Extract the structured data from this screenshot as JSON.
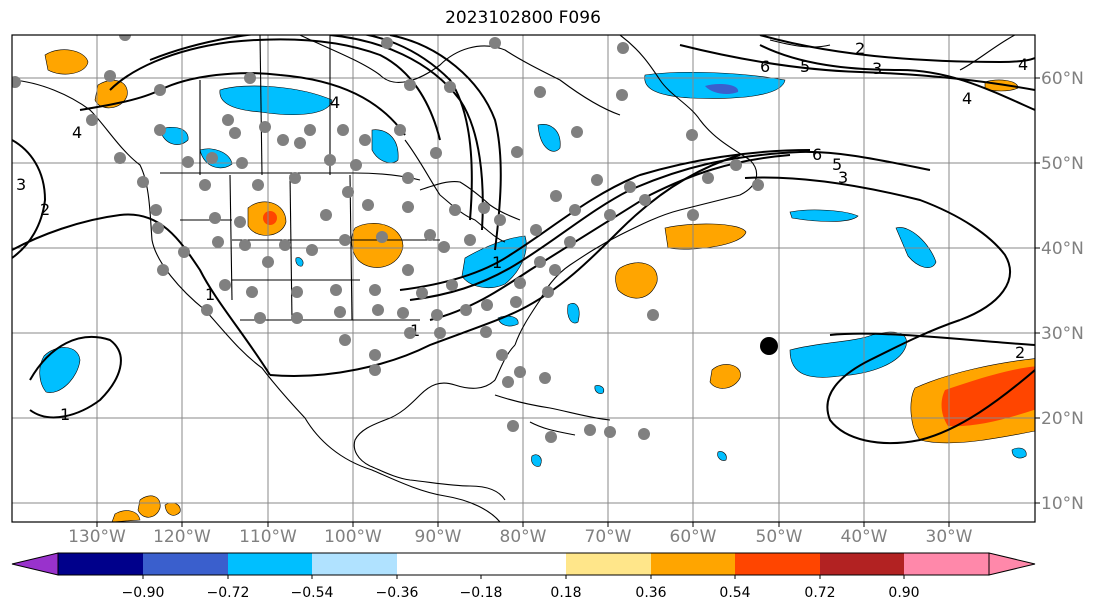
{
  "title": "2023102800 F096",
  "colors": {
    "land_line": "#000000",
    "grid": "#888888",
    "contour": "#000000",
    "station_dot": "#808080",
    "marker": "#000000",
    "label_text": "#808080"
  },
  "lon_labels": [
    "130°W",
    "120°W",
    "110°W",
    "100°W",
    "90°W",
    "80°W",
    "70°W",
    "60°W",
    "50°W",
    "40°W",
    "30°W"
  ],
  "lat_labels": [
    "60°N",
    "50°N",
    "40°N",
    "30°N",
    "20°N",
    "10°N"
  ],
  "contour_labels": [
    "2",
    "3",
    "1",
    "4",
    "4",
    "6",
    "5",
    "3",
    "2",
    "6",
    "5",
    "3",
    "4",
    "4",
    "1",
    "2",
    "1",
    "1"
  ],
  "colorbar": {
    "ticks": [
      "−0.90",
      "−0.72",
      "−0.54",
      "−0.36",
      "−0.18",
      "0.18",
      "0.36",
      "0.54",
      "0.72",
      "0.90"
    ],
    "bin_colors": [
      "#9932CC",
      "#00008B",
      "#3A5FCD",
      "#00BFFF",
      "#B0E2FF",
      "#FFFFFF",
      "#FFE68A",
      "#FFA500",
      "#FF4500",
      "#B22222",
      "#FF88AA"
    ]
  }
}
